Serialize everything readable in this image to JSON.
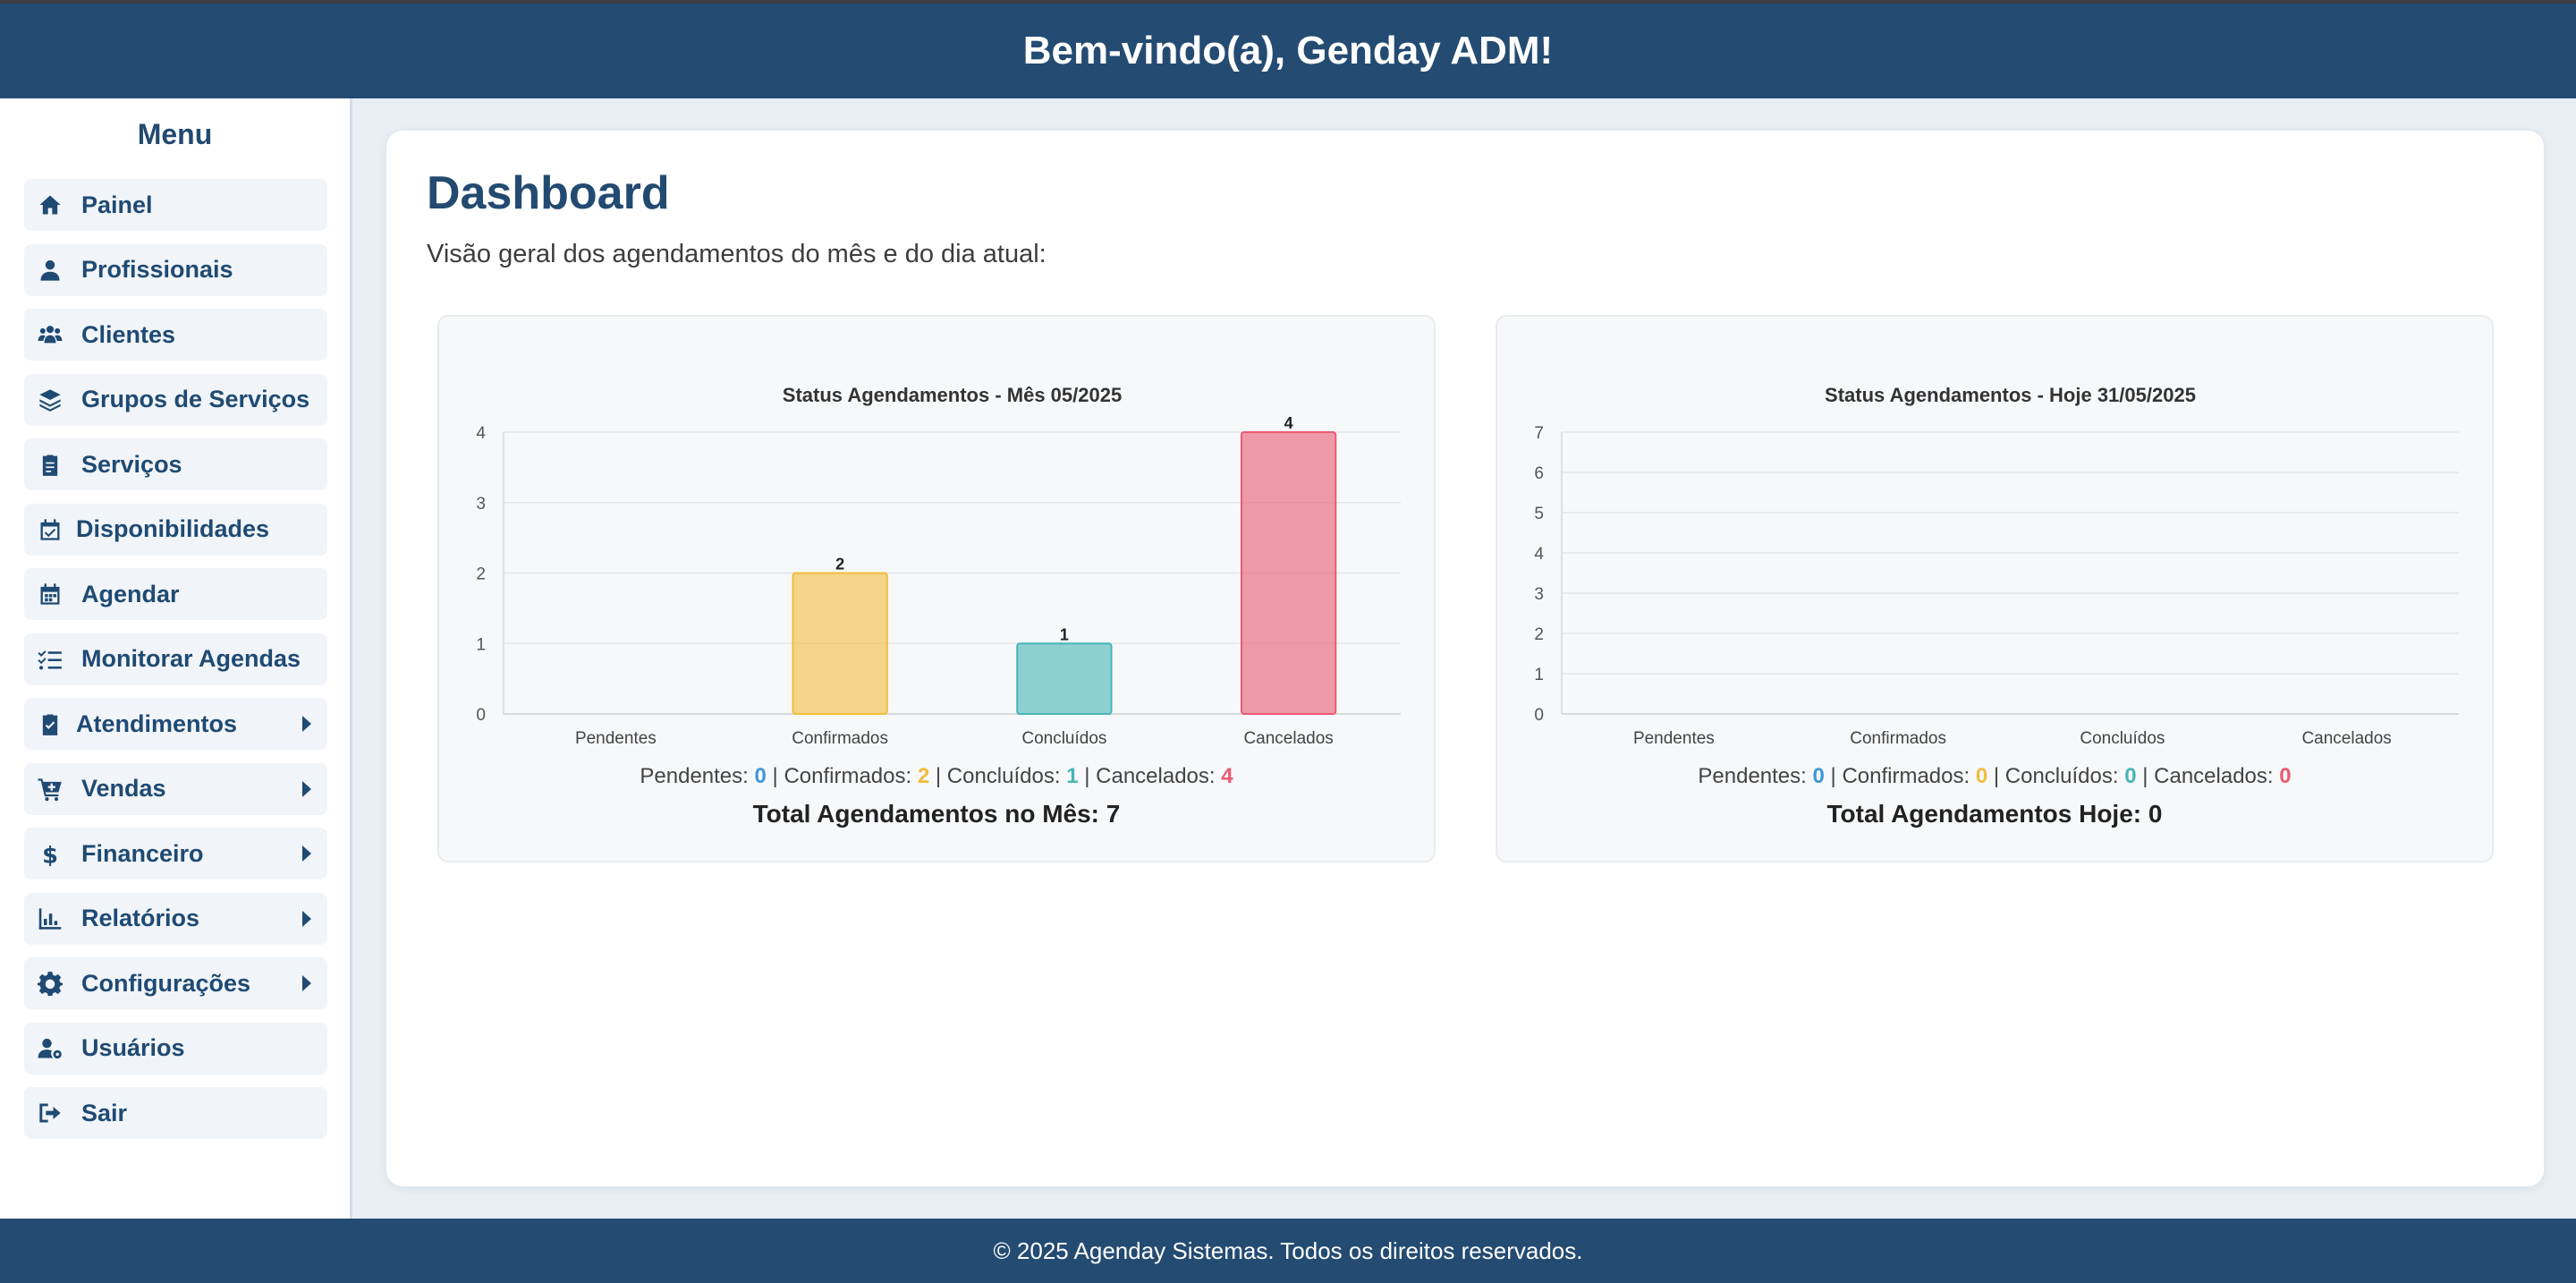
{
  "header": {
    "title": "Bem-vindo(a), Genday ADM!"
  },
  "sidebar": {
    "title": "Menu",
    "items": [
      {
        "label": "Painel",
        "icon": "home-icon",
        "has_submenu": false
      },
      {
        "label": "Profissionais",
        "icon": "user-tie-icon",
        "has_submenu": false
      },
      {
        "label": "Clientes",
        "icon": "users-icon",
        "has_submenu": false
      },
      {
        "label": "Grupos de Serviços",
        "icon": "layers-icon",
        "has_submenu": false
      },
      {
        "label": "Serviços",
        "icon": "clipboard-icon",
        "has_submenu": false
      },
      {
        "label": "Disponibilidades",
        "icon": "calendar-check-icon",
        "has_submenu": false
      },
      {
        "label": "Agendar",
        "icon": "calendar-icon",
        "has_submenu": false
      },
      {
        "label": "Monitorar Agendas",
        "icon": "list-check-icon",
        "has_submenu": false
      },
      {
        "label": "Atendimentos",
        "icon": "clipboard-check-icon",
        "has_submenu": true
      },
      {
        "label": "Vendas",
        "icon": "cart-icon",
        "has_submenu": true
      },
      {
        "label": "Financeiro",
        "icon": "dollar-icon",
        "has_submenu": true
      },
      {
        "label": "Relatórios",
        "icon": "bar-chart-icon",
        "has_submenu": true
      },
      {
        "label": "Configurações",
        "icon": "gear-icon",
        "has_submenu": true
      },
      {
        "label": "Usuários",
        "icon": "user-gear-icon",
        "has_submenu": false
      },
      {
        "label": "Sair",
        "icon": "logout-icon",
        "has_submenu": false
      }
    ]
  },
  "main": {
    "title": "Dashboard",
    "subtitle": "Visão geral dos agendamentos do mês e do dia atual:"
  },
  "colors": {
    "pendentes": "#3d97d9",
    "confirmados": "#f1bd3c",
    "concluidos": "#48b5b7",
    "cancelados": "#ea5a72"
  },
  "chart_data": [
    {
      "type": "bar",
      "title": "Status Agendamentos - Mês 05/2025",
      "categories": [
        "Pendentes",
        "Confirmados",
        "Concluídos",
        "Cancelados"
      ],
      "values": [
        0,
        2,
        1,
        4
      ],
      "data_labels": true,
      "ylim": [
        0,
        4
      ],
      "yticks": [
        0,
        1,
        2,
        3,
        4
      ],
      "grid": true,
      "bar_colors": [
        "#3d97d9",
        "#f1bd3c",
        "#48b5b7",
        "#ea5a72"
      ],
      "summary": {
        "pendentes_label": "Pendentes:",
        "pendentes": "0",
        "confirmados_label": "Confirmados:",
        "confirmados": "2",
        "concluidos_label": "Concluídos:",
        "concluidos": "1",
        "cancelados_label": "Cancelados:",
        "cancelados": "4"
      },
      "total_label": "Total Agendamentos no Mês: 7"
    },
    {
      "type": "bar",
      "title": "Status Agendamentos - Hoje 31/05/2025",
      "categories": [
        "Pendentes",
        "Confirmados",
        "Concluídos",
        "Cancelados"
      ],
      "values": [
        0,
        0,
        0,
        0
      ],
      "data_labels": false,
      "ylim": [
        0,
        7
      ],
      "yticks": [
        0,
        1,
        2,
        3,
        4,
        5,
        6,
        7
      ],
      "grid": true,
      "bar_colors": [
        "#3d97d9",
        "#f1bd3c",
        "#48b5b7",
        "#ea5a72"
      ],
      "summary": {
        "pendentes_label": "Pendentes:",
        "pendentes": "0",
        "confirmados_label": "Confirmados:",
        "confirmados": "0",
        "concluidos_label": "Concluídos:",
        "concluidos": "0",
        "cancelados_label": "Cancelados:",
        "cancelados": "0"
      },
      "total_label": "Total Agendamentos Hoje: 0"
    }
  ],
  "footer": {
    "text": "© 2025 Agenday Sistemas. Todos os direitos reservados."
  }
}
